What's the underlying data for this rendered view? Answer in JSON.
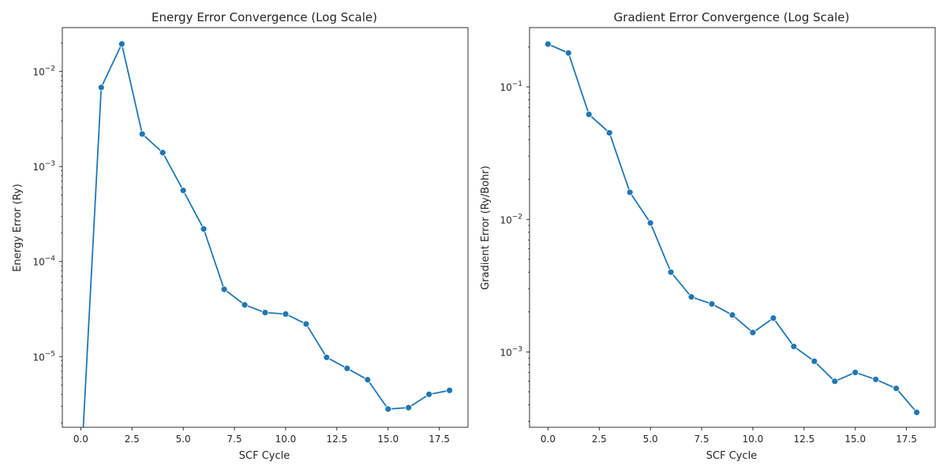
{
  "chart_data": [
    {
      "type": "line",
      "title": "Energy Error Convergence (Log Scale)",
      "xlabel": "SCF Cycle",
      "ylabel": "Energy Error (Ry)",
      "yscale": "log",
      "xlim": [
        -0.9,
        18.9
      ],
      "ylim": [
        1.8e-06,
        0.029
      ],
      "xticks": [
        0,
        2.5,
        5,
        7.5,
        10,
        12.5,
        15,
        17.5
      ],
      "xtick_labels": [
        "0.0",
        "2.5",
        "5.0",
        "7.5",
        "10.0",
        "12.5",
        "15.0",
        "17.5"
      ],
      "yticks": [
        1e-05,
        0.0001,
        0.001,
        0.01
      ],
      "ytick_labels": [
        [
          "10",
          "−5"
        ],
        [
          "10",
          "−4"
        ],
        [
          "10",
          "−3"
        ],
        [
          "10",
          "−2"
        ]
      ],
      "grid": false,
      "color": "#1f77b4",
      "marker": "circle",
      "series": [
        {
          "x": [
            0,
            1,
            2,
            3,
            4,
            5,
            6,
            7,
            8,
            9,
            10,
            11,
            12,
            13,
            14,
            15,
            16,
            17,
            18
          ],
          "y": [
            0,
            0.0068,
            0.0195,
            0.0022,
            0.0014,
            0.00056,
            0.00022,
            5.1e-05,
            3.5e-05,
            2.9e-05,
            2.8e-05,
            2.2e-05,
            9.8e-06,
            7.5e-06,
            5.7e-06,
            2.8e-06,
            2.9e-06,
            4e-06,
            4.4e-06
          ]
        }
      ]
    },
    {
      "type": "line",
      "title": "Gradient Error Convergence (Log Scale)",
      "xlabel": "SCF Cycle",
      "ylabel": "Gradient Error (Ry/Bohr)",
      "yscale": "log",
      "xlim": [
        -0.9,
        18.9
      ],
      "ylim": [
        0.00027,
        0.28
      ],
      "xticks": [
        0,
        2.5,
        5,
        7.5,
        10,
        12.5,
        15,
        17.5
      ],
      "xtick_labels": [
        "0.0",
        "2.5",
        "5.0",
        "7.5",
        "10.0",
        "12.5",
        "15.0",
        "17.5"
      ],
      "yticks": [
        0.001,
        0.01,
        0.1
      ],
      "ytick_labels": [
        [
          "10",
          "−3"
        ],
        [
          "10",
          "−2"
        ],
        [
          "10",
          "−1"
        ]
      ],
      "grid": false,
      "color": "#1f77b4",
      "marker": "circle",
      "series": [
        {
          "x": [
            0,
            1,
            2,
            3,
            4,
            5,
            6,
            7,
            8,
            9,
            10,
            11,
            12,
            13,
            14,
            15,
            16,
            17,
            18
          ],
          "y": [
            0.21,
            0.18,
            0.062,
            0.045,
            0.016,
            0.0094,
            0.004,
            0.0026,
            0.0023,
            0.0019,
            0.0014,
            0.0018,
            0.0011,
            0.00085,
            0.0006,
            0.0007,
            0.00062,
            0.00053,
            0.00035
          ]
        }
      ]
    }
  ]
}
